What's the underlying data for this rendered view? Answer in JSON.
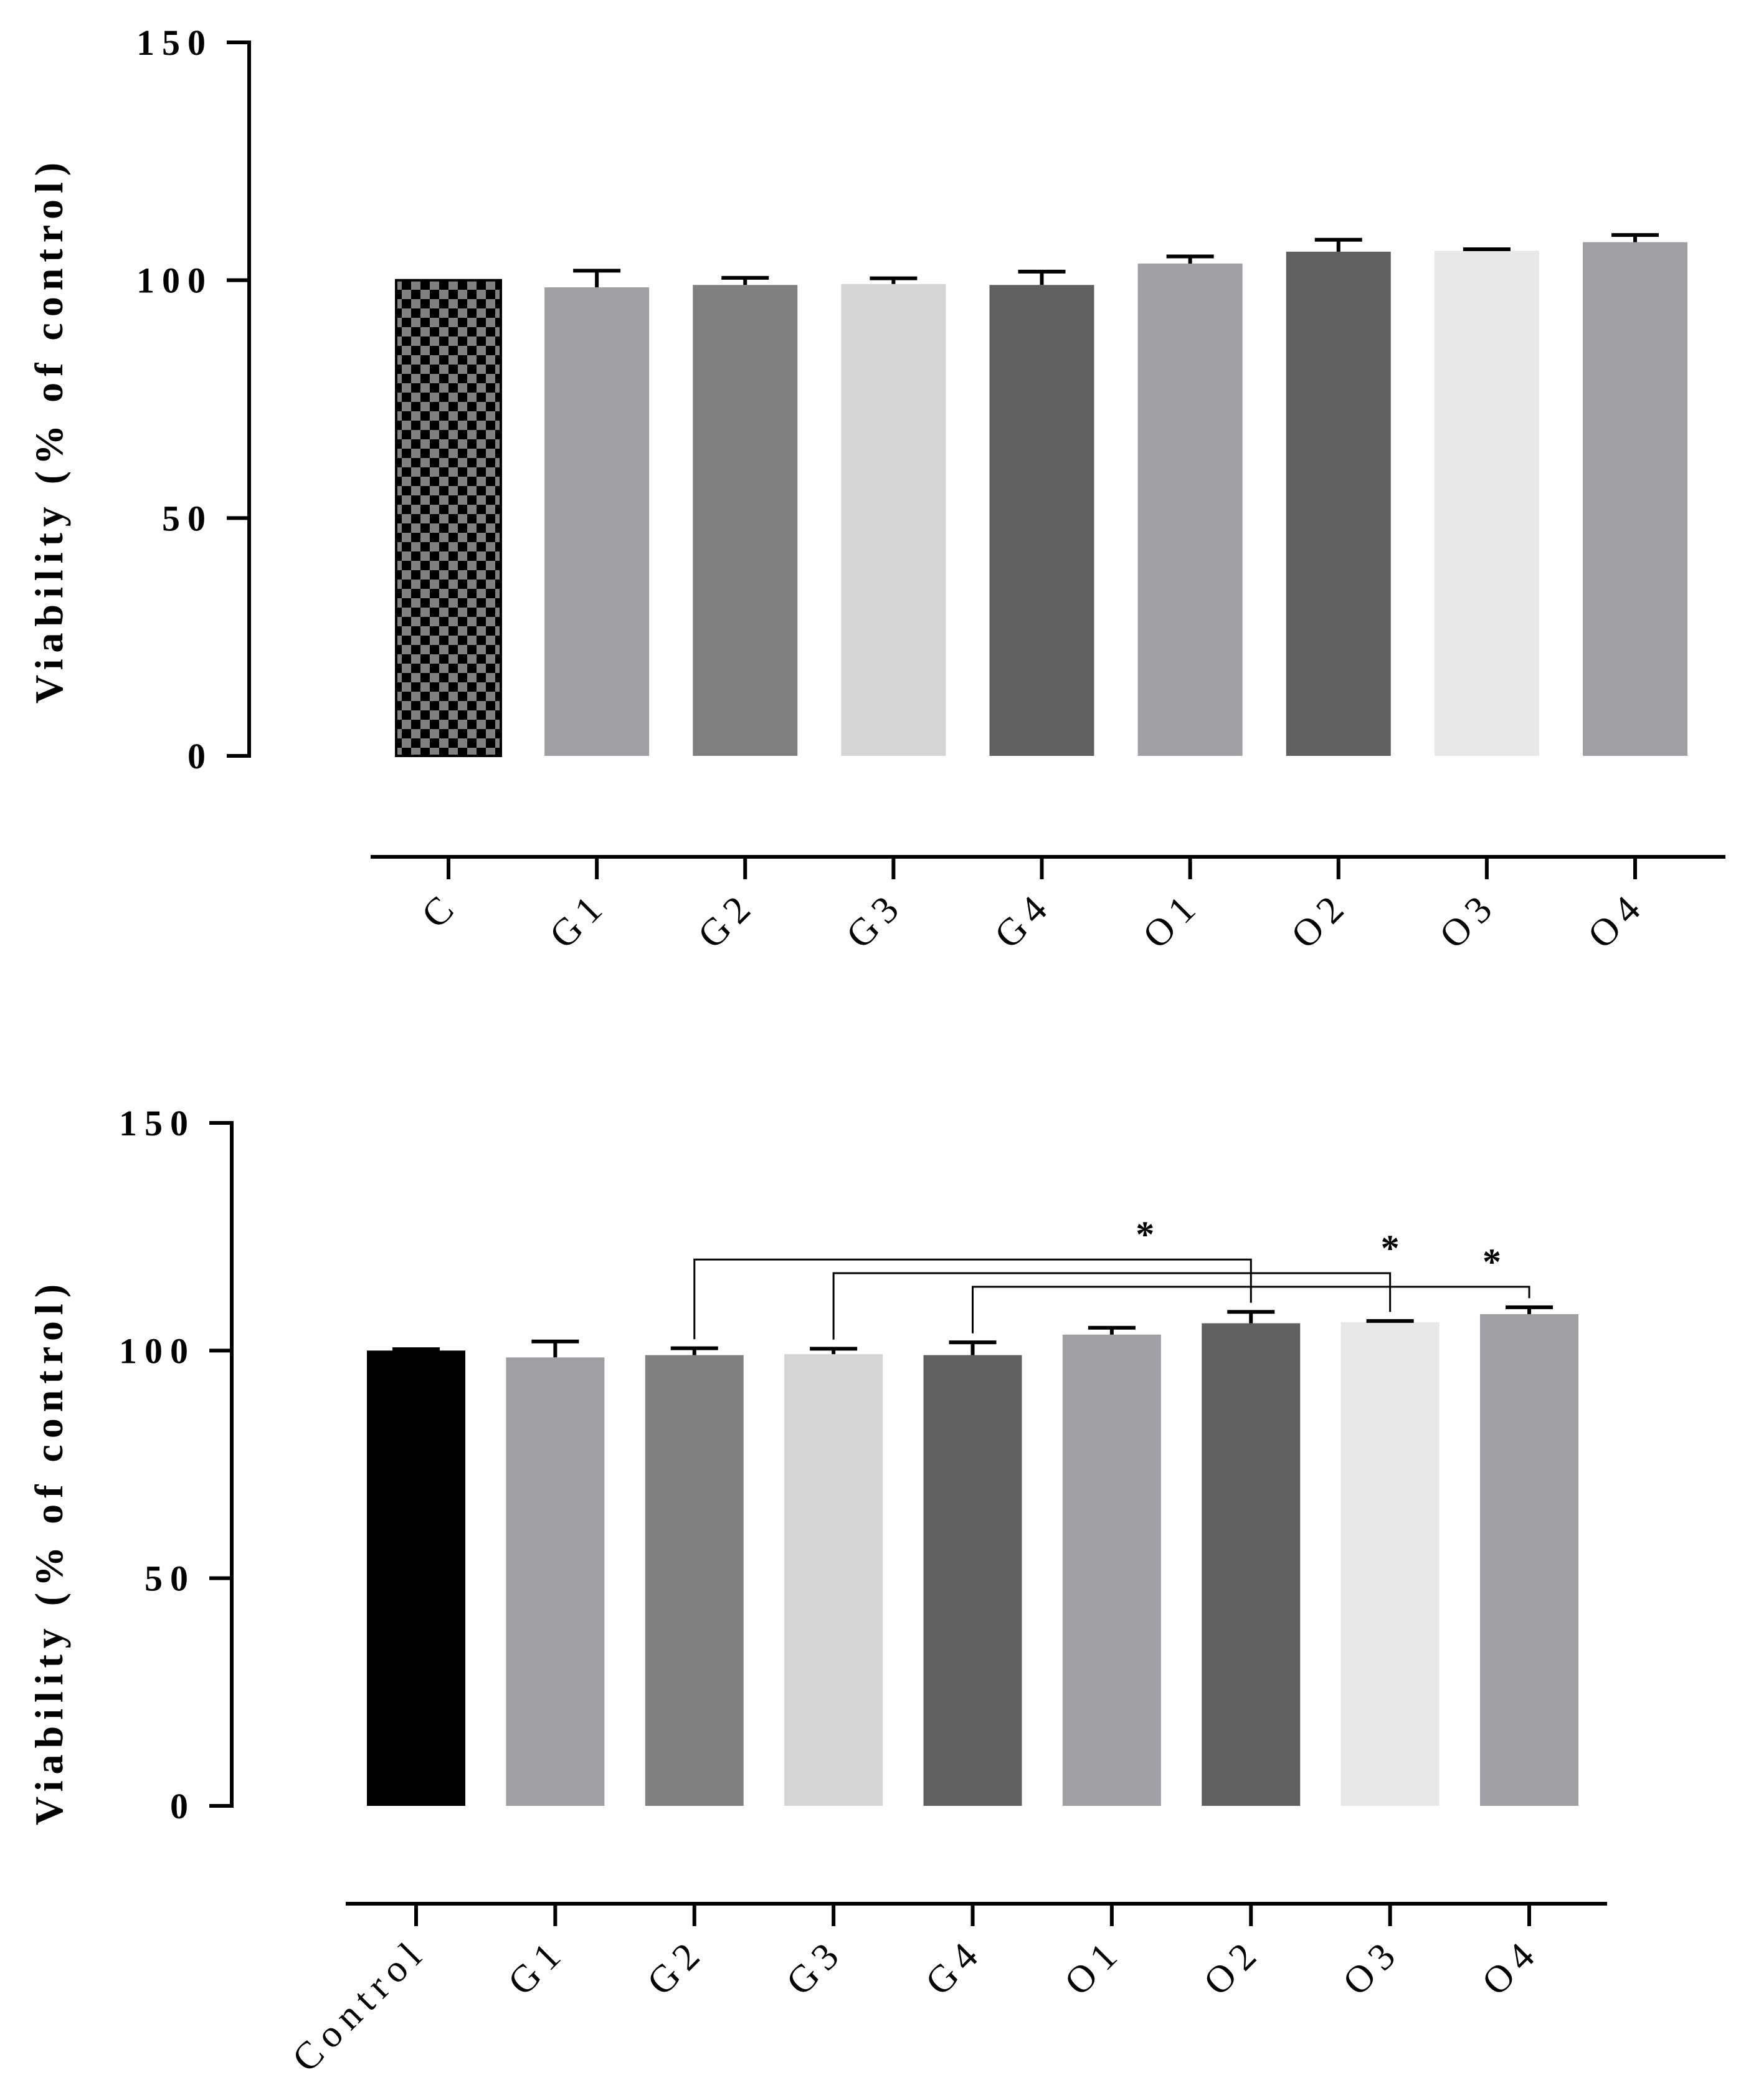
{
  "chart_data": [
    {
      "type": "bar",
      "ylabel": "Viability (% of control)",
      "ylim": [
        0,
        150
      ],
      "yticks": [
        "0",
        "50",
        "100",
        "150"
      ],
      "categories": [
        "C",
        "G1",
        "G2",
        "G3",
        "G4",
        "O1",
        "O2",
        "O3",
        "O4"
      ],
      "values": [
        100,
        98.5,
        99,
        99.2,
        99,
        103.5,
        106,
        106.2,
        108
      ],
      "errors": [
        0,
        3.5,
        1.5,
        1.2,
        2.8,
        1.5,
        2.5,
        0.3,
        1.5
      ],
      "colors": [
        "#333333",
        "#a0a0a4",
        "#808080",
        "#d4d4d4",
        "#606060",
        "#a0a0a4",
        "#606060",
        "#e8e8e8",
        "#a0a0a4"
      ],
      "patterns": [
        "checker",
        "",
        "",
        "",
        "",
        "",
        "",
        "",
        ""
      ]
    },
    {
      "type": "bar",
      "ylabel": "Viability (% of control)",
      "ylim": [
        0,
        150
      ],
      "yticks": [
        "0",
        "50",
        "100",
        "150"
      ],
      "categories": [
        "Control",
        "G1",
        "G2",
        "G3",
        "G4",
        "O1",
        "O2",
        "O3",
        "O4"
      ],
      "values": [
        100,
        98.5,
        99,
        99.2,
        99,
        103.5,
        106,
        106.2,
        108
      ],
      "errors": [
        0.3,
        3.5,
        1.5,
        1.2,
        2.8,
        1.5,
        2.5,
        0.3,
        1.5
      ],
      "colors": [
        "#000000",
        "#a0a0a4",
        "#808080",
        "#d4d4d4",
        "#606060",
        "#a0a0a4",
        "#606060",
        "#e8e8e8",
        "#a0a0a4"
      ],
      "patterns": [
        "",
        "",
        "",
        "",
        "",
        "",
        "",
        "",
        ""
      ],
      "significance": [
        {
          "from": "G2",
          "to": "O2",
          "level": 120,
          "label": "*"
        },
        {
          "from": "G3",
          "to": "O3",
          "level": 117,
          "label": "*"
        },
        {
          "from": "G4",
          "to": "O4",
          "level": 114,
          "label": "*"
        }
      ]
    }
  ]
}
